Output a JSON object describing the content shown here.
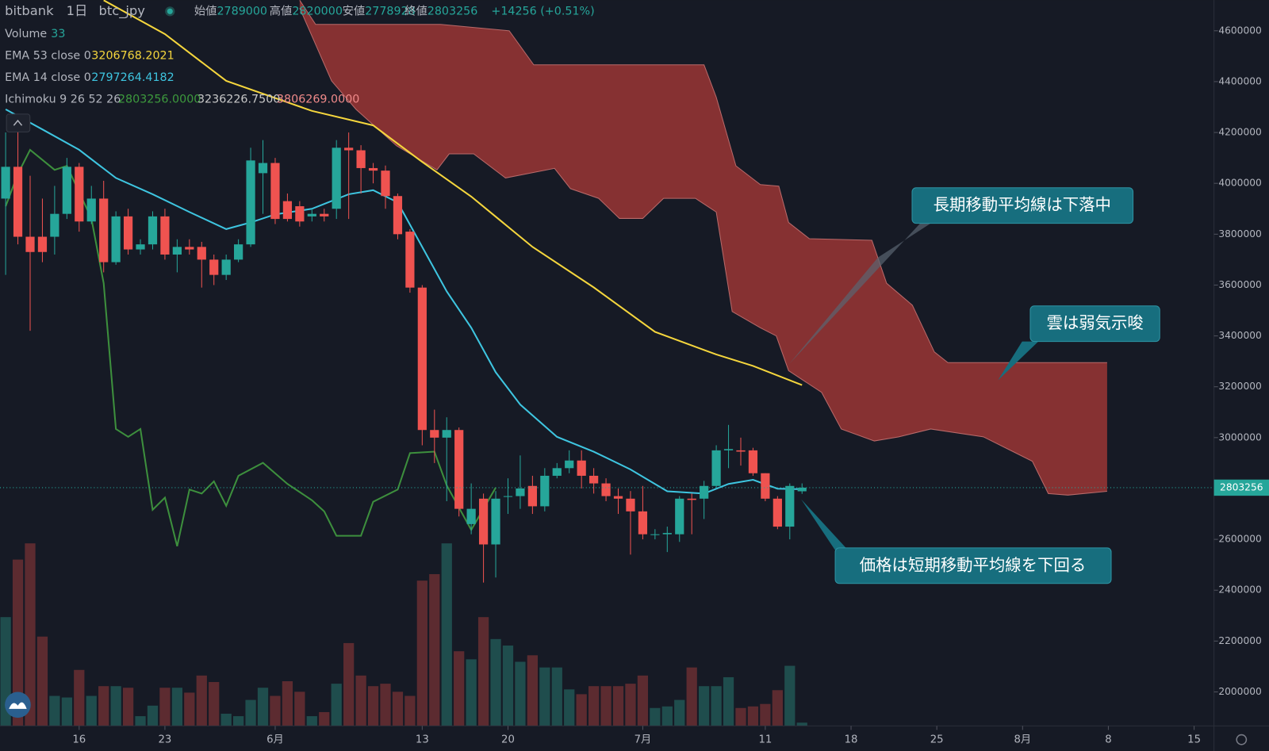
{
  "chart_data": {
    "type": "candlestick",
    "header": {
      "source": "bitbank",
      "interval": "1日",
      "symbol": "btc_jpy",
      "open_label": "始値",
      "high_label": "高値",
      "low_label": "安値",
      "close_label": "終値",
      "change": "+14256 (+0.51%)",
      "ichimoku_name": "Ichimoku 9 26 52 26",
      "ichimoku_values": [
        "2803256.0000",
        "3236226.7500",
        "3806269.0000"
      ]
    },
    "up_color": "#26a69a",
    "down_color": "#ef5350",
    "x": [
      130,
      131,
      132,
      133,
      134,
      135,
      136,
      137,
      138,
      139,
      140,
      141,
      142,
      143,
      144,
      145,
      146,
      147,
      148,
      149,
      150,
      151,
      152,
      153,
      154,
      155,
      156,
      157,
      158,
      159,
      160,
      161,
      162,
      163,
      164,
      165,
      166,
      167,
      168,
      169,
      170,
      171,
      172,
      173,
      174,
      175,
      176,
      177,
      178,
      179,
      180,
      181,
      182,
      183,
      184,
      185,
      186,
      187,
      188,
      189,
      190,
      191,
      192,
      193,
      194,
      195
    ],
    "open": [
      3940000,
      4065000,
      3790000,
      3790000,
      3790000,
      3880000,
      4065000,
      3850000,
      3940000,
      3690000,
      3870000,
      3740000,
      3760000,
      3870000,
      3720000,
      3750000,
      3750000,
      3700000,
      3640000,
      3700000,
      3760000,
      4040000,
      4080000,
      3930000,
      3910000,
      3870000,
      3880000,
      3900000,
      4140000,
      4130000,
      4060000,
      4050000,
      3950000,
      3810000,
      3590000,
      3030000,
      3000000,
      3030000,
      2660000,
      2760000,
      2580000,
      2770000,
      2770000,
      2810000,
      2730000,
      2850000,
      2880000,
      2910000,
      2850000,
      2820000,
      2770000,
      2760000,
      2710000,
      2620000,
      2620000,
      2620000,
      2760000,
      2760000,
      2810000,
      2950000,
      2950000,
      2950000,
      2860000,
      2760000,
      2650000,
      2789000
    ],
    "high": [
      4200000,
      4230000,
      4030000,
      3940000,
      3990000,
      4100000,
      4080000,
      3990000,
      4010000,
      3890000,
      3900000,
      3780000,
      3890000,
      3900000,
      3780000,
      3780000,
      3770000,
      3720000,
      3720000,
      3780000,
      4140000,
      4170000,
      4100000,
      3960000,
      3930000,
      3900000,
      3900000,
      4170000,
      4200000,
      4150000,
      4080000,
      4070000,
      3960000,
      3820000,
      3600000,
      3110000,
      3080000,
      3040000,
      2820000,
      2780000,
      2790000,
      2840000,
      2930000,
      2850000,
      2880000,
      2900000,
      2950000,
      2950000,
      2880000,
      2840000,
      2800000,
      2790000,
      2810000,
      2640000,
      2650000,
      2770000,
      2780000,
      2830000,
      2970000,
      3050000,
      3000000,
      2960000,
      2860000,
      2770000,
      2820000,
      2820000
    ],
    "low": [
      3640000,
      3760000,
      3420000,
      3690000,
      3720000,
      3860000,
      3810000,
      3840000,
      3650000,
      3680000,
      3720000,
      3720000,
      3740000,
      3700000,
      3650000,
      3720000,
      3590000,
      3600000,
      3620000,
      3690000,
      3750000,
      3880000,
      3840000,
      3850000,
      3830000,
      3850000,
      3850000,
      3860000,
      3860000,
      3960000,
      4000000,
      3900000,
      3780000,
      3570000,
      2970000,
      2900000,
      2750000,
      2690000,
      2620000,
      2430000,
      2450000,
      2700000,
      2720000,
      2700000,
      2710000,
      2840000,
      2860000,
      2800000,
      2780000,
      2750000,
      2700000,
      2540000,
      2600000,
      2600000,
      2550000,
      2590000,
      2620000,
      2680000,
      2800000,
      2880000,
      2890000,
      2850000,
      2750000,
      2640000,
      2600000,
      2778928
    ],
    "close": [
      4065000,
      3790000,
      3730000,
      3730000,
      3880000,
      4065000,
      3850000,
      3940000,
      3690000,
      3870000,
      3740000,
      3760000,
      3870000,
      3720000,
      3750000,
      3740000,
      3700000,
      3640000,
      3700000,
      3760000,
      4090000,
      4080000,
      3860000,
      3860000,
      3850000,
      3880000,
      3870000,
      4140000,
      4130000,
      4060000,
      4050000,
      3950000,
      3800000,
      3590000,
      3030000,
      3000000,
      3030000,
      2720000,
      2720000,
      2580000,
      2760000,
      2770000,
      2800000,
      2730000,
      2850000,
      2880000,
      2910000,
      2850000,
      2820000,
      2770000,
      2760000,
      2710000,
      2620000,
      2620000,
      2625000,
      2760000,
      2755000,
      2810000,
      2950000,
      2955000,
      2945000,
      2860000,
      2760000,
      2650000,
      2810000,
      2803256
    ],
    "volume": {
      "name": "Volume",
      "up_color": "#1f4d4d",
      "down_color": "#5c2b30",
      "ylim": [
        0,
        2600
      ],
      "values": [
        1106,
        1691,
        1856,
        908,
        305,
        289,
        569,
        305,
        404,
        404,
        388,
        99,
        206,
        388,
        388,
        338,
        512,
        446,
        124,
        99,
        264,
        388,
        305,
        454,
        347,
        99,
        140,
        429,
        842,
        512,
        404,
        429,
        347,
        305,
        1477,
        1543,
        1856,
        759,
        677,
        1106,
        883,
        817,
        652,
        718,
        594,
        594,
        371,
        322,
        404,
        404,
        404,
        429,
        512,
        182,
        198,
        264,
        594,
        404,
        404,
        495,
        182,
        198,
        223,
        363,
        611,
        33
      ]
    },
    "series": [
      {
        "name": "EMA 53 close 0",
        "color": "#f5d63d",
        "x": [
          138,
          143,
          148,
          155,
          160,
          164,
          168,
          173,
          178,
          183,
          188,
          191,
          195
        ],
        "values": [
          4720000,
          4587000,
          4403000,
          4285000,
          4228000,
          4084000,
          3948000,
          3750000,
          3591000,
          3416000,
          3327000,
          3282000,
          3206768.2021
        ]
      },
      {
        "name": "EMA 14 close 0",
        "color": "#3ec5e0",
        "x": [
          130,
          133,
          136,
          139,
          142,
          145,
          148,
          150,
          152,
          155,
          158,
          160,
          162,
          164,
          166,
          168,
          170,
          172,
          175,
          178,
          181,
          184,
          187,
          189,
          191,
          193,
          195
        ],
        "values": [
          4291000,
          4212000,
          4132000,
          4021000,
          3957000,
          3887000,
          3820000,
          3846000,
          3878000,
          3900000,
          3957000,
          3973000,
          3925000,
          3750000,
          3575000,
          3432000,
          3257000,
          3130000,
          3003000,
          2945000,
          2875000,
          2789000,
          2780000,
          2818000,
          2834000,
          2799000,
          2797264.4182
        ]
      },
      {
        "name": "Ichimoku 9 26 52 26",
        "color": "#3d8f3d",
        "x": [
          130,
          131,
          132,
          134,
          135,
          137,
          138,
          139,
          140,
          141,
          142,
          143,
          144,
          145,
          146,
          147,
          148,
          149,
          151,
          153,
          155,
          156,
          157,
          159,
          160,
          162,
          163,
          165,
          166,
          168,
          170
        ],
        "values": [
          3910000,
          4037000,
          4132000,
          4053000,
          4069000,
          3862000,
          3607000,
          3034000,
          3003000,
          3034000,
          2716000,
          2764000,
          2573000,
          2796000,
          2780000,
          2828000,
          2732000,
          2850000,
          2901000,
          2818000,
          2754000,
          2710000,
          2614000,
          2614000,
          2748000,
          2796000,
          2939000,
          2945000,
          2812000,
          2637000,
          2803256
        ]
      }
    ],
    "cloud": {
      "color": "#8c3333",
      "edge_color": "#b86a6a",
      "span_b": {
        "x": [
          154,
          155.3,
          165.5,
          171.1,
          173.1,
          187,
          188,
          189.6,
          191.6,
          193.1,
          193.9,
          195.6,
          200.7,
          201.9,
          204,
          205.8,
          206.9,
          219.9
        ],
        "values": [
          4720000,
          4625000,
          4625000,
          4600000,
          4466000,
          4466000,
          4339000,
          4069000,
          3995000,
          3989000,
          3846000,
          3782000,
          3776000,
          3607000,
          3521000,
          3337000,
          3295000,
          3295000
        ]
      },
      "span_a": {
        "x": [
          154,
          156.6,
          158.6,
          161.9,
          165.2,
          166.2,
          168.2,
          170.8,
          174.8,
          176.1,
          178.4,
          180.1,
          182,
          183.7,
          186.3,
          188,
          189.3,
          191.6,
          192.9,
          193.9,
          196.6,
          198.2,
          200.9,
          202.9,
          205.5,
          209.8,
          211.8,
          213.8,
          215.1,
          216.7,
          219.9
        ],
        "values": [
          4689000,
          4403000,
          4291000,
          4148000,
          4053000,
          4116000,
          4116000,
          4021000,
          4059000,
          3979000,
          3941000,
          3862000,
          3862000,
          3941000,
          3941000,
          3887000,
          3496000,
          3432000,
          3400000,
          3263000,
          3178000,
          3034000,
          2987000,
          3003000,
          3034000,
          3003000,
          2955000,
          2907000,
          2780000,
          2774000,
          2789000
        ]
      }
    },
    "xlim": [
      129.54,
      228.62
    ],
    "ylim": [
      1866400,
      4720900
    ],
    "xticks": [
      {
        "value": 136,
        "label": "16"
      },
      {
        "value": 143,
        "label": "23"
      },
      {
        "value": 152,
        "label": "6月"
      },
      {
        "value": 164,
        "label": "13"
      },
      {
        "value": 171,
        "label": "20"
      },
      {
        "value": 182,
        "label": "7月"
      },
      {
        "value": 192,
        "label": "11"
      },
      {
        "value": 199,
        "label": "18"
      },
      {
        "value": 206,
        "label": "25"
      },
      {
        "value": 213,
        "label": "8月"
      },
      {
        "value": 220,
        "label": "8"
      },
      {
        "value": 227,
        "label": "15"
      }
    ],
    "yticks": [
      2000000,
      2200000,
      2400000,
      2600000,
      2800000,
      3000000,
      3200000,
      3400000,
      3600000,
      3800000,
      4000000,
      4200000,
      4400000,
      4600000
    ],
    "annotations": [
      "長期移動平均線は下落中",
      "雲は弱気示唆",
      "価格は短期移動平均線を下回る"
    ]
  }
}
